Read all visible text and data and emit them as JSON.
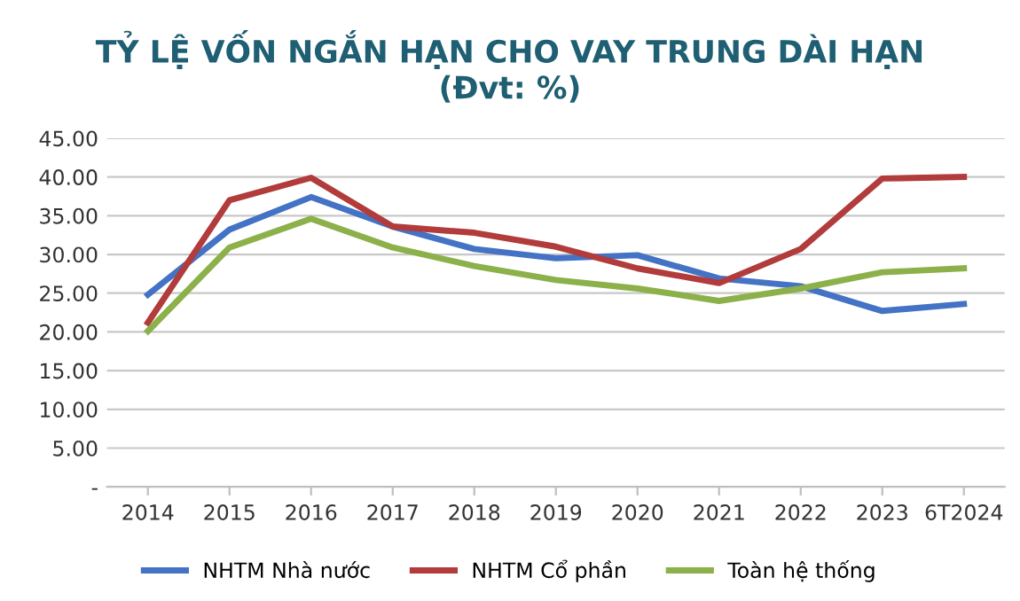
{
  "chart_data": {
    "type": "line",
    "title": "TỶ LỆ VỐN NGẮN HẠN CHO VAY TRUNG DÀI HẠN",
    "subtitle": "(Đvt: %)",
    "categories": [
      "2014",
      "2015",
      "2016",
      "2017",
      "2018",
      "2019",
      "2020",
      "2021",
      "2022",
      "2023",
      "6T2024"
    ],
    "series": [
      {
        "name": "NHTM Nhà nước",
        "color": "#4472c4",
        "values": [
          24.8,
          33.2,
          37.4,
          33.6,
          30.7,
          29.5,
          29.9,
          26.9,
          25.9,
          22.7,
          23.6
        ]
      },
      {
        "name": "NHTM Cổ phần",
        "color": "#b23b3b",
        "values": [
          21.2,
          37.0,
          39.9,
          33.6,
          32.8,
          31.0,
          28.2,
          26.3,
          30.7,
          39.8,
          40.0
        ]
      },
      {
        "name": "Toàn hệ thống",
        "color": "#8cb04a",
        "values": [
          20.1,
          30.9,
          34.6,
          30.9,
          28.5,
          26.7,
          25.6,
          24.0,
          25.6,
          27.7,
          28.2
        ]
      }
    ],
    "ylim": [
      0,
      45
    ],
    "yticks": [
      {
        "value": 0,
        "label": "-"
      },
      {
        "value": 5,
        "label": "5.00"
      },
      {
        "value": 10,
        "label": "10.00"
      },
      {
        "value": 15,
        "label": "15.00"
      },
      {
        "value": 20,
        "label": "20.00"
      },
      {
        "value": 25,
        "label": "25.00"
      },
      {
        "value": 30,
        "label": "30.00"
      },
      {
        "value": 35,
        "label": "35.00"
      },
      {
        "value": 40,
        "label": "40.00"
      },
      {
        "value": 45,
        "label": "45.00"
      }
    ],
    "grid": "y",
    "legend": "bottom",
    "line_style": "solid",
    "marker": "none"
  }
}
